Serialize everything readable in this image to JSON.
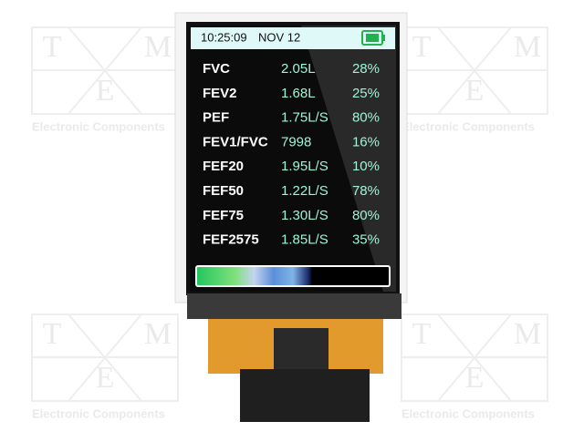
{
  "status_bar": {
    "time": "10:25:09",
    "date": "NOV 12"
  },
  "readings": [
    {
      "label": "FVC",
      "value": "2.05L",
      "percent": "28%"
    },
    {
      "label": "FEV2",
      "value": "1.68L",
      "percent": "25%"
    },
    {
      "label": "PEF",
      "value": "1.75L/S",
      "percent": "80%"
    },
    {
      "label": "FEV1/FVC",
      "value": "7998",
      "percent": "16%"
    },
    {
      "label": "FEF20",
      "value": "1.95L/S",
      "percent": "10%"
    },
    {
      "label": "FEF50",
      "value": "1.22L/S",
      "percent": "78%"
    },
    {
      "label": "FEF75",
      "value": "1.30L/S",
      "percent": "80%"
    },
    {
      "label": "FEF2575",
      "value": "1.85L/S",
      "percent": "35%"
    }
  ],
  "watermark": {
    "letters": [
      "T",
      "M",
      "E"
    ],
    "caption": "Electronic Components"
  }
}
